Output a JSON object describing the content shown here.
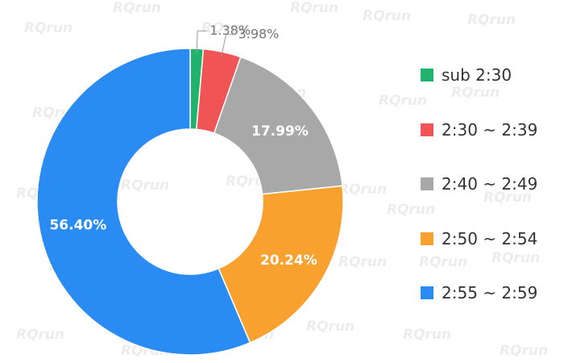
{
  "watermark": "RQrun",
  "chart_data": {
    "type": "pie",
    "donut": true,
    "title": "",
    "categories": [
      "sub 2:30",
      "2:30 ~ 2:39",
      "2:40 ~ 2:49",
      "2:50 ~ 2:54",
      "2:55 ~ 2:59"
    ],
    "values": [
      1.38,
      3.98,
      17.99,
      20.24,
      56.4
    ],
    "labels": [
      "1.38%",
      "3.98%",
      "17.99%",
      "20.24%",
      "56.40%"
    ],
    "colors": [
      "#21b36b",
      "#f05454",
      "#a8a8a8",
      "#f9a12e",
      "#2a8cf2"
    ],
    "legend_position": "right",
    "start_angle": "top",
    "direction": "clockwise"
  }
}
